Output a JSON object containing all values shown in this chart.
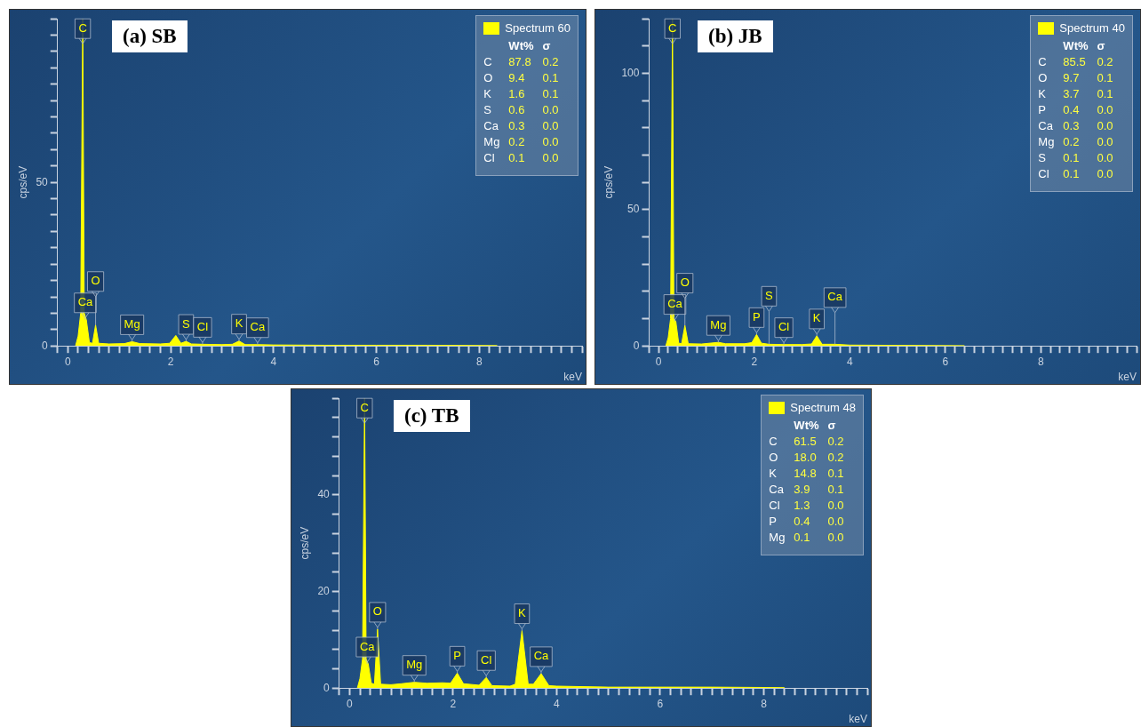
{
  "chart_data": [
    {
      "type": "area",
      "title": "(a) SB",
      "xlabel": "keV",
      "ylabel": "cps/eV",
      "legend": "top right",
      "xlim": [
        -0.2,
        10
      ],
      "xticks": [
        {
          "value": -0.2,
          "label": null
        },
        0,
        {
          "value": 0.2,
          "label": null
        },
        {
          "value": 0.4,
          "label": null
        },
        {
          "value": 0.6,
          "label": null
        },
        {
          "value": 0.8,
          "label": null
        },
        {
          "value": 1,
          "label": null
        },
        {
          "value": 1.2,
          "label": null
        },
        {
          "value": 1.4,
          "label": null
        },
        {
          "value": 1.6,
          "label": null
        },
        {
          "value": 1.8,
          "label": null
        },
        2,
        {
          "value": 2.2,
          "label": null
        },
        {
          "value": 2.4,
          "label": null
        },
        {
          "value": 2.6,
          "label": null
        },
        {
          "value": 2.8,
          "label": null
        },
        {
          "value": 3,
          "label": null
        },
        {
          "value": 3.2,
          "label": null
        },
        {
          "value": 3.4,
          "label": null
        },
        {
          "value": 3.6,
          "label": null
        },
        {
          "value": 3.8,
          "label": null
        },
        4,
        {
          "value": 4.2,
          "label": null
        },
        {
          "value": 4.4,
          "label": null
        },
        {
          "value": 4.6,
          "label": null
        },
        {
          "value": 4.8,
          "label": null
        },
        {
          "value": 5,
          "label": null
        },
        {
          "value": 5.2,
          "label": null
        },
        {
          "value": 5.4,
          "label": null
        },
        {
          "value": 5.6,
          "label": null
        },
        {
          "value": 5.8,
          "label": null
        },
        6,
        {
          "value": 6.2,
          "label": null
        },
        {
          "value": 6.4,
          "label": null
        },
        {
          "value": 6.6,
          "label": null
        },
        {
          "value": 6.8,
          "label": null
        },
        {
          "value": 7,
          "label": null
        },
        {
          "value": 7.2,
          "label": null
        },
        {
          "value": 7.4,
          "label": null
        },
        {
          "value": 7.6,
          "label": null
        },
        {
          "value": 7.8,
          "label": null
        },
        8,
        {
          "value": 8.2,
          "label": null
        },
        {
          "value": 8.4,
          "label": null
        },
        {
          "value": 8.6,
          "label": null
        },
        {
          "value": 8.8,
          "label": null
        },
        {
          "value": 9,
          "label": null
        },
        {
          "value": 9.2,
          "label": null
        },
        {
          "value": 9.4,
          "label": null
        },
        {
          "value": 9.6,
          "label": null
        },
        {
          "value": 9.8,
          "label": null
        },
        {
          "value": 10,
          "label": null
        }
      ],
      "ylim": [
        0,
        100
      ],
      "yticks": [
        0,
        {
          "value": 5,
          "label": null
        },
        {
          "value": 10,
          "label": null
        },
        {
          "value": 15,
          "label": null
        },
        {
          "value": 20,
          "label": null
        },
        {
          "value": 25,
          "label": null
        },
        {
          "value": 30,
          "label": null
        },
        {
          "value": 35,
          "label": null
        },
        {
          "value": 40,
          "label": null
        },
        {
          "value": 45,
          "label": null
        },
        50,
        {
          "value": 55,
          "label": null
        },
        {
          "value": 60,
          "label": null
        },
        {
          "value": 65,
          "label": null
        },
        {
          "value": 70,
          "label": null
        },
        {
          "value": 75,
          "label": null
        },
        {
          "value": 80,
          "label": null
        },
        {
          "value": 85,
          "label": null
        },
        {
          "value": 90,
          "label": null
        },
        {
          "value": 95,
          "label": null
        },
        {
          "value": 100,
          "label": null
        }
      ],
      "series": [
        {
          "name": "Spectrum 60",
          "color": "#ffff00",
          "x": [
            0.15,
            0.2,
            0.25,
            0.29,
            0.32,
            0.36,
            0.42,
            0.48,
            0.54,
            0.6,
            0.8,
            1.1,
            1.25,
            1.4,
            1.8,
            1.98,
            2.1,
            2.2,
            2.3,
            2.4,
            2.62,
            3.0,
            3.2,
            3.33,
            3.45,
            3.69,
            4.0,
            5,
            6,
            7,
            8.35
          ],
          "values": [
            0,
            3,
            10,
            100,
            10,
            8,
            1,
            0.8,
            6.4,
            0.8,
            0.6,
            0.7,
            1.3,
            0.7,
            0.6,
            0.8,
            3.2,
            0.8,
            1.4,
            0.6,
            0.5,
            0.4,
            0.5,
            1.5,
            0.4,
            0.4,
            0.3,
            0.2,
            0.2,
            0.2,
            0.1
          ]
        }
      ],
      "annotations": [
        {
          "text": "C",
          "x": 0.29,
          "y": 100
        },
        {
          "text": "Ca",
          "x": 0.34,
          "y": 8
        },
        {
          "text": "O",
          "x": 0.54,
          "y": 6.4
        },
        {
          "text": "Mg",
          "x": 1.25,
          "y": 1.3
        },
        {
          "text": "S",
          "x": 2.3,
          "y": 1.4
        },
        {
          "text": "Cl",
          "x": 2.62,
          "y": 0.5
        },
        {
          "text": "K",
          "x": 3.33,
          "y": 1.5
        },
        {
          "text": "Ca",
          "x": 3.69,
          "y": 0.4
        },
        "Wt%",
        "σ",
        "C",
        "87.8",
        "0.2",
        "O",
        "9.4",
        "0.1",
        "K",
        "1.6",
        "0.1",
        "S",
        "0.6",
        "0.0",
        "Ca",
        "0.3",
        "0.0",
        "Mg",
        "0.2",
        "0.0",
        "Cl",
        "0.1",
        "0.0"
      ]
    },
    {
      "type": "area",
      "title": "(b) JB",
      "xlabel": "keV",
      "ylabel": "cps/eV",
      "legend": "top right",
      "xlim": [
        -0.2,
        10
      ],
      "xticks": [
        {
          "value": -0.2,
          "label": null
        },
        0,
        {
          "value": 0.2,
          "label": null
        },
        {
          "value": 0.4,
          "label": null
        },
        {
          "value": 0.6,
          "label": null
        },
        {
          "value": 0.8,
          "label": null
        },
        {
          "value": 1,
          "label": null
        },
        {
          "value": 1.2,
          "label": null
        },
        {
          "value": 1.4,
          "label": null
        },
        {
          "value": 1.6,
          "label": null
        },
        {
          "value": 1.8,
          "label": null
        },
        2,
        {
          "value": 2.2,
          "label": null
        },
        {
          "value": 2.4,
          "label": null
        },
        {
          "value": 2.6,
          "label": null
        },
        {
          "value": 2.8,
          "label": null
        },
        {
          "value": 3,
          "label": null
        },
        {
          "value": 3.2,
          "label": null
        },
        {
          "value": 3.4,
          "label": null
        },
        {
          "value": 3.6,
          "label": null
        },
        {
          "value": 3.8,
          "label": null
        },
        4,
        {
          "value": 4.2,
          "label": null
        },
        {
          "value": 4.4,
          "label": null
        },
        {
          "value": 4.6,
          "label": null
        },
        {
          "value": 4.8,
          "label": null
        },
        {
          "value": 5,
          "label": null
        },
        {
          "value": 5.2,
          "label": null
        },
        {
          "value": 5.4,
          "label": null
        },
        {
          "value": 5.6,
          "label": null
        },
        {
          "value": 5.8,
          "label": null
        },
        6,
        {
          "value": 6.2,
          "label": null
        },
        {
          "value": 6.4,
          "label": null
        },
        {
          "value": 6.6,
          "label": null
        },
        {
          "value": 6.8,
          "label": null
        },
        {
          "value": 7,
          "label": null
        },
        {
          "value": 7.2,
          "label": null
        },
        {
          "value": 7.4,
          "label": null
        },
        {
          "value": 7.6,
          "label": null
        },
        {
          "value": 7.8,
          "label": null
        },
        8,
        {
          "value": 8.2,
          "label": null
        },
        {
          "value": 8.4,
          "label": null
        },
        {
          "value": 8.6,
          "label": null
        },
        {
          "value": 8.8,
          "label": null
        },
        {
          "value": 9,
          "label": null
        },
        {
          "value": 9.2,
          "label": null
        },
        {
          "value": 9.4,
          "label": null
        },
        {
          "value": 9.6,
          "label": null
        },
        {
          "value": 9.8,
          "label": null
        },
        {
          "value": 10,
          "label": null
        }
      ],
      "ylim": [
        0,
        120
      ],
      "yticks": [
        0,
        {
          "value": 10,
          "label": null
        },
        {
          "value": 20,
          "label": null
        },
        {
          "value": 30,
          "label": null
        },
        {
          "value": 40,
          "label": null
        },
        50,
        {
          "value": 60,
          "label": null
        },
        {
          "value": 70,
          "label": null
        },
        {
          "value": 80,
          "label": null
        },
        {
          "value": 90,
          "label": null
        },
        100,
        {
          "value": 110,
          "label": null
        },
        {
          "value": 120,
          "label": null
        }
      ],
      "series": [
        {
          "name": "Spectrum 40",
          "color": "#ffff00",
          "x": [
            0.15,
            0.2,
            0.25,
            0.29,
            0.32,
            0.36,
            0.42,
            0.48,
            0.55,
            0.62,
            0.9,
            1.25,
            1.4,
            1.8,
            1.95,
            2.05,
            2.15,
            2.31,
            2.62,
            3.0,
            3.2,
            3.31,
            3.42,
            3.69,
            4.0,
            5,
            6.4
          ],
          "values": [
            0,
            3,
            10,
            120,
            10,
            9,
            1,
            0.8,
            7.5,
            0.8,
            0.7,
            1.3,
            0.8,
            0.8,
            1.2,
            4.2,
            1.0,
            0.6,
            0.5,
            0.5,
            0.7,
            3.7,
            0.6,
            0.6,
            0.3,
            0.2,
            0.1
          ]
        }
      ],
      "annotations": [
        {
          "text": "C",
          "x": 0.29,
          "y": 120
        },
        {
          "text": "Ca",
          "x": 0.34,
          "y": 9
        },
        {
          "text": "O",
          "x": 0.55,
          "y": 7.5
        },
        {
          "text": "Mg",
          "x": 1.25,
          "y": 1.3
        },
        {
          "text": "P",
          "x": 2.05,
          "y": 4.2
        },
        {
          "text": "S",
          "x": 2.31,
          "y": 0.6
        },
        {
          "text": "Cl",
          "x": 2.62,
          "y": 0.5
        },
        {
          "text": "K",
          "x": 3.31,
          "y": 3.7
        },
        {
          "text": "Ca",
          "x": 3.69,
          "y": 0.6
        },
        "Wt%",
        "σ",
        "C",
        "85.5",
        "0.2",
        "O",
        "9.7",
        "0.1",
        "K",
        "3.7",
        "0.1",
        "P",
        "0.4",
        "0.0",
        "Ca",
        "0.3",
        "0.0",
        "Mg",
        "0.2",
        "0.0",
        "S",
        "0.1",
        "0.0",
        "Cl",
        "0.1",
        "0.0"
      ]
    },
    {
      "type": "area",
      "title": "(c) TB",
      "xlabel": "keV",
      "ylabel": "cps/eV",
      "legend": "top right",
      "xlim": [
        -0.2,
        10
      ],
      "xticks": [
        {
          "value": -0.2,
          "label": null
        },
        0,
        {
          "value": 0.2,
          "label": null
        },
        {
          "value": 0.4,
          "label": null
        },
        {
          "value": 0.6,
          "label": null
        },
        {
          "value": 0.8,
          "label": null
        },
        {
          "value": 1,
          "label": null
        },
        {
          "value": 1.2,
          "label": null
        },
        {
          "value": 1.4,
          "label": null
        },
        {
          "value": 1.6,
          "label": null
        },
        {
          "value": 1.8,
          "label": null
        },
        2,
        {
          "value": 2.2,
          "label": null
        },
        {
          "value": 2.4,
          "label": null
        },
        {
          "value": 2.6,
          "label": null
        },
        {
          "value": 2.8,
          "label": null
        },
        {
          "value": 3,
          "label": null
        },
        {
          "value": 3.2,
          "label": null
        },
        {
          "value": 3.4,
          "label": null
        },
        {
          "value": 3.6,
          "label": null
        },
        {
          "value": 3.8,
          "label": null
        },
        4,
        {
          "value": 4.2,
          "label": null
        },
        {
          "value": 4.4,
          "label": null
        },
        {
          "value": 4.6,
          "label": null
        },
        {
          "value": 4.8,
          "label": null
        },
        {
          "value": 5,
          "label": null
        },
        {
          "value": 5.2,
          "label": null
        },
        {
          "value": 5.4,
          "label": null
        },
        {
          "value": 5.6,
          "label": null
        },
        {
          "value": 5.8,
          "label": null
        },
        6,
        {
          "value": 6.2,
          "label": null
        },
        {
          "value": 6.4,
          "label": null
        },
        {
          "value": 6.6,
          "label": null
        },
        {
          "value": 6.8,
          "label": null
        },
        {
          "value": 7,
          "label": null
        },
        {
          "value": 7.2,
          "label": null
        },
        {
          "value": 7.4,
          "label": null
        },
        {
          "value": 7.6,
          "label": null
        },
        {
          "value": 7.8,
          "label": null
        },
        8,
        {
          "value": 8.2,
          "label": null
        },
        {
          "value": 8.4,
          "label": null
        },
        {
          "value": 8.6,
          "label": null
        },
        {
          "value": 8.8,
          "label": null
        },
        {
          "value": 9,
          "label": null
        },
        {
          "value": 9.2,
          "label": null
        },
        {
          "value": 9.4,
          "label": null
        },
        {
          "value": 9.6,
          "label": null
        },
        {
          "value": 9.8,
          "label": null
        },
        {
          "value": 10,
          "label": null
        }
      ],
      "ylim": [
        0,
        60
      ],
      "yticks": [
        0,
        {
          "value": 4,
          "label": null
        },
        {
          "value": 8,
          "label": null
        },
        {
          "value": 12,
          "label": null
        },
        {
          "value": 16,
          "label": null
        },
        20,
        {
          "value": 24,
          "label": null
        },
        {
          "value": 28,
          "label": null
        },
        {
          "value": 32,
          "label": null
        },
        {
          "value": 36,
          "label": null
        },
        40,
        {
          "value": 44,
          "label": null
        },
        {
          "value": 48,
          "label": null
        },
        {
          "value": 52,
          "label": null
        },
        {
          "value": 56,
          "label": null
        },
        {
          "value": 60,
          "label": null
        }
      ],
      "series": [
        {
          "name": "Spectrum 48",
          "color": "#ffff00",
          "x": [
            0.15,
            0.2,
            0.25,
            0.29,
            0.32,
            0.36,
            0.42,
            0.48,
            0.54,
            0.6,
            0.8,
            1.0,
            1.25,
            1.5,
            1.8,
            1.95,
            2.08,
            2.2,
            2.5,
            2.64,
            2.75,
            3.1,
            3.2,
            3.33,
            3.45,
            3.55,
            3.7,
            3.85,
            4.0,
            5,
            6,
            7,
            8.4
          ],
          "values": [
            0,
            2,
            6,
            60,
            6,
            5,
            1,
            0.8,
            12.2,
            0.8,
            0.7,
            0.9,
            1.2,
            1.0,
            1.1,
            1.0,
            3.1,
            0.9,
            0.6,
            2.2,
            0.5,
            0.4,
            0.8,
            11.9,
            0.8,
            0.8,
            3.0,
            0.5,
            0.4,
            0.2,
            0.2,
            0.2,
            0.1
          ]
        }
      ],
      "annotations": [
        {
          "text": "C",
          "x": 0.29,
          "y": 60
        },
        {
          "text": "Ca",
          "x": 0.34,
          "y": 5
        },
        {
          "text": "O",
          "x": 0.54,
          "y": 12.2
        },
        {
          "text": "Mg",
          "x": 1.25,
          "y": 1.2
        },
        {
          "text": "P",
          "x": 2.08,
          "y": 3.1
        },
        {
          "text": "Cl",
          "x": 2.64,
          "y": 2.2
        },
        {
          "text": "K",
          "x": 3.33,
          "y": 11.9
        },
        {
          "text": "Ca",
          "x": 3.7,
          "y": 3.0
        },
        "Wt%",
        "σ",
        "C",
        "61.5",
        "0.2",
        "O",
        "18.0",
        "0.2",
        "K",
        "14.8",
        "0.1",
        "Ca",
        "3.9",
        "0.1",
        "Cl",
        "1.3",
        "0.0",
        "P",
        "0.4",
        "0.0",
        "Mg",
        "0.1",
        "0.0"
      ]
    }
  ]
}
